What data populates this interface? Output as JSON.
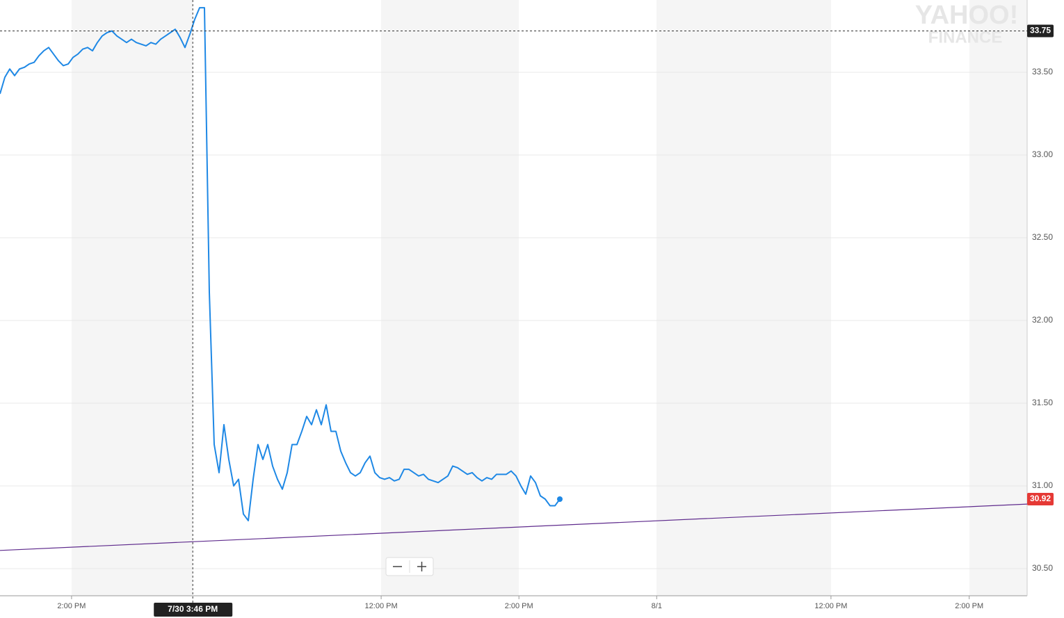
{
  "chart_data": {
    "type": "line",
    "watermark": [
      "YAHOO!",
      "FINANCE"
    ],
    "xlim": [
      0,
      211
    ],
    "ylim": [
      30.336,
      33.937
    ],
    "yticks": [
      {
        "value": 30.5,
        "label": "30.50"
      },
      {
        "value": 31,
        "label": "31.00"
      },
      {
        "value": 31.5,
        "label": "31.50"
      },
      {
        "value": 32,
        "label": "32.00"
      },
      {
        "value": 32.5,
        "label": "32.50"
      },
      {
        "value": 33,
        "label": "33.00"
      },
      {
        "value": 33.5,
        "label": "33.50"
      }
    ],
    "xticks": [
      {
        "value": 14.7,
        "label": "2:00 PM"
      },
      {
        "value": 78.3,
        "label": "12:00 PM"
      },
      {
        "value": 106.6,
        "label": "2:00 PM"
      },
      {
        "value": 134.9,
        "label": "8/1"
      },
      {
        "value": 170.7,
        "label": "12:00 PM"
      },
      {
        "value": 199.1,
        "label": "2:00 PM"
      }
    ],
    "grid": true,
    "series": [
      {
        "color": "#1e88e5",
        "values": [
          33.37,
          33.47,
          33.52,
          33.48,
          33.52,
          33.53,
          33.55,
          33.56,
          33.6,
          33.63,
          33.65,
          33.61,
          33.57,
          33.54,
          33.55,
          33.59,
          33.61,
          33.64,
          33.65,
          33.63,
          33.68,
          33.72,
          33.74,
          33.75,
          33.72,
          33.7,
          33.68,
          33.7,
          33.68,
          33.67,
          33.66,
          33.68,
          33.67,
          33.7,
          33.72,
          33.74,
          33.76,
          33.71,
          33.65,
          33.73,
          33.82,
          33.89,
          33.89,
          32.17,
          31.25,
          31.08,
          31.37,
          31.16,
          31.0,
          31.04,
          30.83,
          30.79,
          31.04,
          31.25,
          31.16,
          31.25,
          31.12,
          31.04,
          30.98,
          31.08,
          31.25,
          31.25,
          31.33,
          31.42,
          31.37,
          31.46,
          31.37,
          31.49,
          31.33,
          31.33,
          31.21,
          31.14,
          31.08,
          31.06,
          31.08,
          31.14,
          31.18,
          31.08,
          31.05,
          31.04,
          31.05,
          31.03,
          31.04,
          31.1,
          31.1,
          31.08,
          31.06,
          31.07,
          31.04,
          31.03,
          31.02,
          31.04,
          31.06,
          31.12,
          31.11,
          31.09,
          31.07,
          31.08,
          31.05,
          31.03,
          31.05,
          31.04,
          31.07,
          31.07,
          31.07,
          31.09,
          31.06,
          31.0,
          30.95,
          31.06,
          31.02,
          30.94,
          30.92,
          30.88,
          30.88,
          30.92
        ]
      },
      {
        "color": "#5e2a8c",
        "x": [
          0,
          211
        ],
        "values": [
          30.61,
          30.89
        ]
      }
    ],
    "crosshair": {
      "x": {
        "value": 39.6,
        "label": "7/30 3:46 PM"
      },
      "y": 33.75
    },
    "last_price": 30.92,
    "last_price_color": "#e53935"
  }
}
